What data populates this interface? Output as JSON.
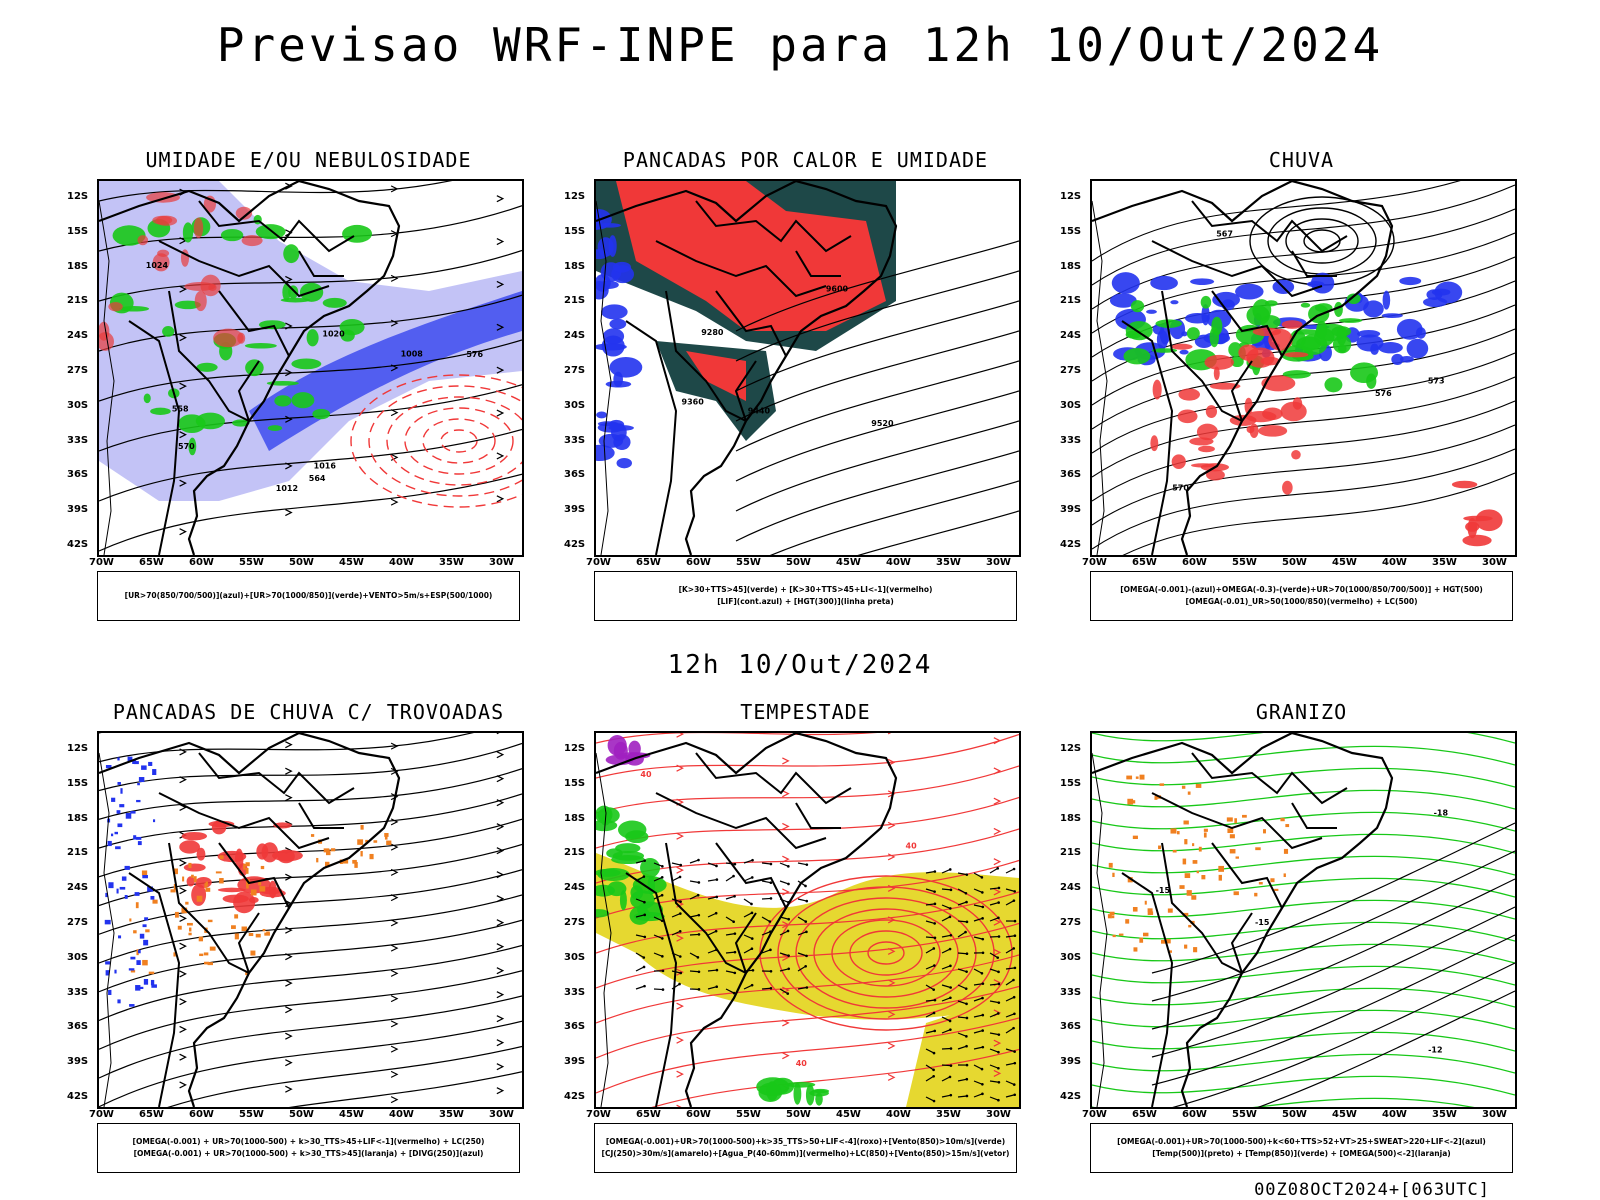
{
  "header": {
    "title": "Previsao WRF-INPE  para 12h 10/Out/2024",
    "subtitle": "12h 10/Out/2024"
  },
  "axes": {
    "lat_labels": [
      "12S",
      "15S",
      "18S",
      "21S",
      "24S",
      "27S",
      "30S",
      "33S",
      "36S",
      "39S",
      "42S"
    ],
    "lon_labels": [
      "70W",
      "65W",
      "60W",
      "55W",
      "50W",
      "45W",
      "40W",
      "35W",
      "30W"
    ]
  },
  "colors": {
    "blue": "#2233ee",
    "lavender": "#b4b4f4",
    "red": "#f03838",
    "green": "#18c818",
    "darkteal": "#1e4848",
    "yellow": "#e6d830",
    "orange": "#f08020",
    "purple": "#a020c0"
  },
  "panels": [
    {
      "id": "umidade",
      "title": "UMIDADE E/OU NEBULOSIDADE",
      "legend": [
        "[UR>70(850/700/500)](azul)+[UR>70(1000/850)](verde)+VENTO>5m/s+ESP(500/1000)"
      ],
      "contour_labels": [
        "1012",
        "1016",
        "1020",
        "1024",
        "576",
        "570",
        "564",
        "558",
        "1008"
      ]
    },
    {
      "id": "pancadas-calor",
      "title": "PANCADAS POR CALOR E UMIDADE",
      "legend": [
        "[K>30+TTS>45](verde) + [K>30+TTS>45+LI<-1](vermelho)",
        "[LIF](cont.azul) + [HGT(300)](linha preta)"
      ],
      "contour_labels": [
        "9600",
        "9520",
        "9440",
        "9360",
        "9280"
      ]
    },
    {
      "id": "chuva",
      "title": "CHUVA",
      "legend": [
        "[OMEGA(-0.001)-(azul)+OMEGA(-0.3)-(verde)+UR>70(1000/850/700/500)] + HGT(500)",
        "[OMEGA(-0.01)_UR>50(1000/850)(vermelho) + LC(500)"
      ],
      "contour_labels": [
        "576",
        "573",
        "570",
        "567"
      ]
    },
    {
      "id": "pancadas-trovoadas",
      "title": "PANCADAS DE CHUVA C/ TROVOADAS",
      "legend": [
        "[OMEGA(-0.001) + UR>70(1000-500) + k>30_TTS>45+LIF<-1](vermelho) + LC(250)",
        "[OMEGA(-0.001) + UR>70(1000-500) + k>30_TTS>45](laranja) + [DIVG(250)](azul)"
      ],
      "contour_labels": []
    },
    {
      "id": "tempestade",
      "title": "TEMPESTADE",
      "legend": [
        "[OMEGA(-0.001)+UR>70(1000-500)+k>35_TTS>50+LIF<-4](roxo)+[Vento(850)>10m/s](verde)",
        "[CJ(250)>30m/s](amarelo)+[Agua_P(40-60mm)](vermelho)+LC(850)+[Vento(850)>15m/s](vetor)"
      ],
      "contour_labels": [
        "40",
        "40",
        "40"
      ]
    },
    {
      "id": "granizo",
      "title": "GRANIZO",
      "legend": [
        "[OMEGA(-0.001)+UR>70(1000-500)+k<60+TTS>52+VT>25+SWEAT>220+LIF<-2](azul)",
        "[Temp(500)](preto) + [Temp(850)](verde) + [OMEGA(500)<-2](laranja)"
      ],
      "contour_labels": [
        "-12",
        "-15",
        "-18",
        "-15"
      ]
    }
  ],
  "footer": "00Z08OCT2024+[063UTC]"
}
